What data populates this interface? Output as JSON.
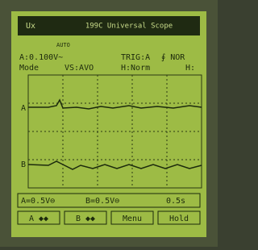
{
  "header": {
    "brand": "Ux",
    "title": "199C Universal Scope"
  },
  "status": {
    "mode": "AUTO"
  },
  "readout": {
    "row1": [
      "A:0.100V~",
      "TRIG:A",
      "∮ NOR"
    ],
    "row2": [
      "Mode",
      "VS:AVO",
      "H:Norm",
      "H:"
    ]
  },
  "channels": [
    "A",
    "B"
  ],
  "bottom": {
    "a_scale": "A=0.5V⊖",
    "b_scale": "B=0.5V⊖",
    "time": "0.5s"
  },
  "softkeys": [
    "A ◆◆",
    "B ◆◆",
    "Menu",
    "Hold"
  ]
}
